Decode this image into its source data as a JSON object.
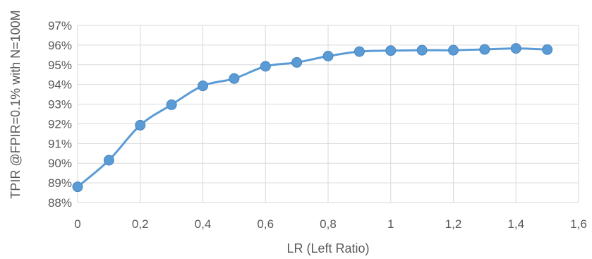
{
  "chart_data": {
    "type": "line",
    "title": "",
    "xlabel": "LR (Left Ratio)",
    "ylabel": "TPIR @FPIR=0.1% with N=100M",
    "xlim": [
      0,
      1.6
    ],
    "ylim": [
      88,
      97
    ],
    "xticks": [
      "0",
      "0,2",
      "0,4",
      "0,6",
      "0,8",
      "1",
      "1,2",
      "1,4",
      "1,6"
    ],
    "yticks": [
      "88%",
      "89%",
      "90%",
      "91%",
      "92%",
      "93%",
      "94%",
      "95%",
      "96%",
      "97%"
    ],
    "grid": true,
    "legend": "none",
    "series": [
      {
        "color": "#5b9bd5",
        "marker": "circle",
        "smooth": true,
        "x": [
          0,
          0.1,
          0.2,
          0.3,
          0.4,
          0.5,
          0.6,
          0.7,
          0.8,
          0.9,
          1.0,
          1.1,
          1.2,
          1.3,
          1.4,
          1.5
        ],
        "y": [
          88.8,
          90.15,
          91.93,
          92.97,
          93.93,
          94.3,
          94.92,
          95.12,
          95.44,
          95.67,
          95.72,
          95.74,
          95.74,
          95.78,
          95.83,
          95.77
        ]
      }
    ],
    "gridColor": "#d9d9d9"
  }
}
